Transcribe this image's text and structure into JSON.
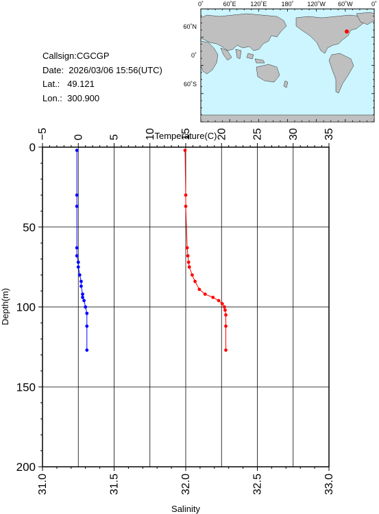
{
  "info": {
    "callsign": "Callsign:CGCGP",
    "date": "Date:  2026/03/06 15:56(UTC)",
    "lat": "Lat.:   49.121",
    "lon": "Lon.:  300.900"
  },
  "map": {
    "top_labels": [
      "0˚",
      "60˚E",
      "120˚E",
      "180˚",
      "120˚W",
      "60˚W",
      "0˚"
    ],
    "left_labels": [
      "60˚N",
      "0˚",
      "60˚S"
    ],
    "marker_color": "#ff0000",
    "ocean_color": "#ccf5ff",
    "land_color": "#bfbfbf"
  },
  "chart_data": {
    "type": "line",
    "top_axis": {
      "label": "Temperature(C)",
      "range": [
        -5,
        35
      ],
      "ticks": [
        "−5",
        "0",
        "5",
        "10",
        "15",
        "20",
        "25",
        "30",
        "35"
      ]
    },
    "bottom_axis": {
      "label": "Salinity",
      "range": [
        31.0,
        33.0
      ],
      "ticks": [
        "31.0",
        "31.5",
        "32.0",
        "32.5",
        "33.0"
      ]
    },
    "y_axis": {
      "label": "Depth(m)",
      "range": [
        0,
        200
      ],
      "inverted": true,
      "ticks": [
        "0",
        "50",
        "100",
        "150",
        "200"
      ]
    },
    "grid": true,
    "series": [
      {
        "color": "#ff0000",
        "axis": "top",
        "points": [
          [
            14.9,
            2
          ],
          [
            15.0,
            30
          ],
          [
            15.0,
            37
          ],
          [
            15.2,
            63
          ],
          [
            15.3,
            68
          ],
          [
            15.4,
            72
          ],
          [
            15.5,
            75
          ],
          [
            15.9,
            80
          ],
          [
            16.3,
            84
          ],
          [
            16.9,
            89
          ],
          [
            17.7,
            92
          ],
          [
            18.8,
            94
          ],
          [
            19.6,
            96
          ],
          [
            20.1,
            98
          ],
          [
            20.4,
            100
          ],
          [
            20.5,
            102
          ],
          [
            20.6,
            105
          ],
          [
            20.6,
            112
          ],
          [
            20.6,
            127
          ]
        ]
      },
      {
        "color": "#0000ff",
        "axis": "bottom",
        "points": [
          [
            31.24,
            2
          ],
          [
            31.24,
            30
          ],
          [
            31.24,
            37
          ],
          [
            31.24,
            63
          ],
          [
            31.24,
            68
          ],
          [
            31.25,
            72
          ],
          [
            31.25,
            75
          ],
          [
            31.26,
            80
          ],
          [
            31.27,
            84
          ],
          [
            31.27,
            87
          ],
          [
            31.28,
            92
          ],
          [
            31.28,
            94
          ],
          [
            31.29,
            96
          ],
          [
            31.3,
            100
          ],
          [
            31.31,
            104
          ],
          [
            31.31,
            112
          ],
          [
            31.31,
            127
          ]
        ]
      }
    ]
  }
}
